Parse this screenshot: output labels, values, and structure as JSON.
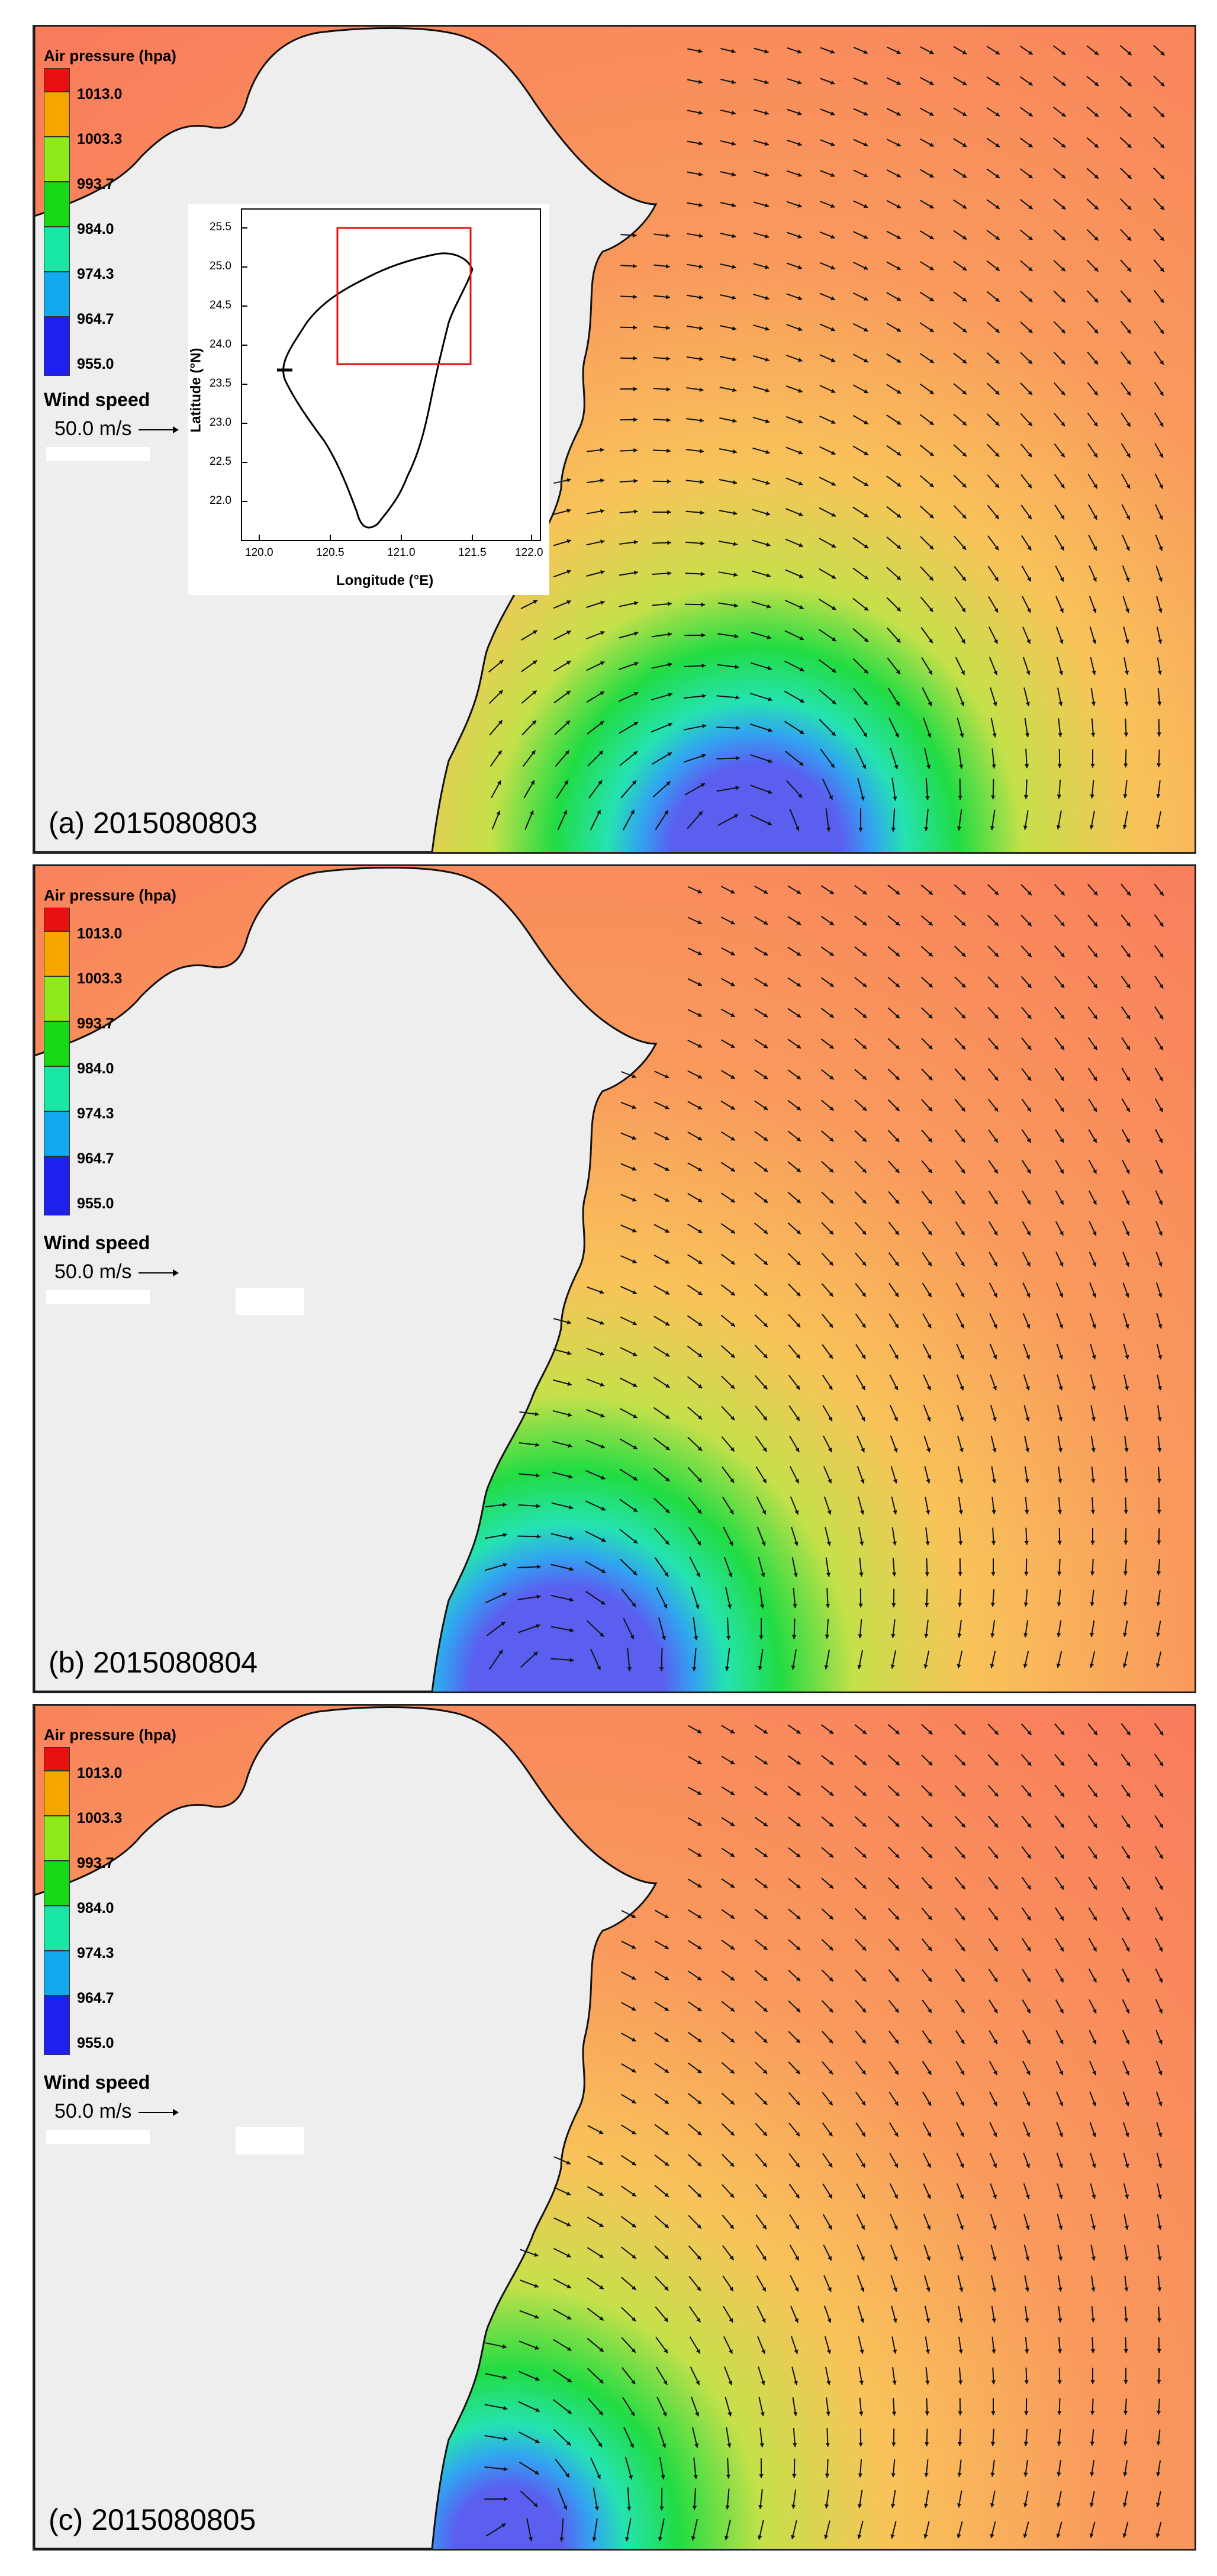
{
  "legend": {
    "title": "Air pressure (hpa)",
    "levels": [
      "1013.0",
      "1003.3",
      "993.7",
      "984.0",
      "974.3",
      "964.7",
      "955.0"
    ],
    "colors": [
      "#e8110f",
      "#f7a400",
      "#8fea1c",
      "#18d918",
      "#18e6a6",
      "#13a9ee",
      "#2020ee"
    ]
  },
  "wind": {
    "title": "Wind speed",
    "reference": "50.0 m/s"
  },
  "panels": [
    {
      "label": "(a) 2015080803"
    },
    {
      "label": "(b) 2015080804"
    },
    {
      "label": "(c) 2015080805"
    }
  ],
  "inset": {
    "xlabel": "Longitude (°E)",
    "ylabel": "Latitude (°N)",
    "xticks": [
      "120.0",
      "120.5",
      "121.0",
      "121.5",
      "122.0"
    ],
    "yticks": [
      "25.5",
      "25.0",
      "24.5",
      "24.0",
      "23.5",
      "23.0",
      "22.5",
      "22.0"
    ]
  },
  "colors": {
    "land": "#eeeeee",
    "far_field": "#f97c5c",
    "mid_field": "#f9c35a",
    "inner_field": "#c6e04a",
    "green": "#21dc43",
    "cyan": "#25e3b0",
    "blue": "#31a5f0",
    "core": "#5a5ff0",
    "inset_box": "#e11111"
  }
}
